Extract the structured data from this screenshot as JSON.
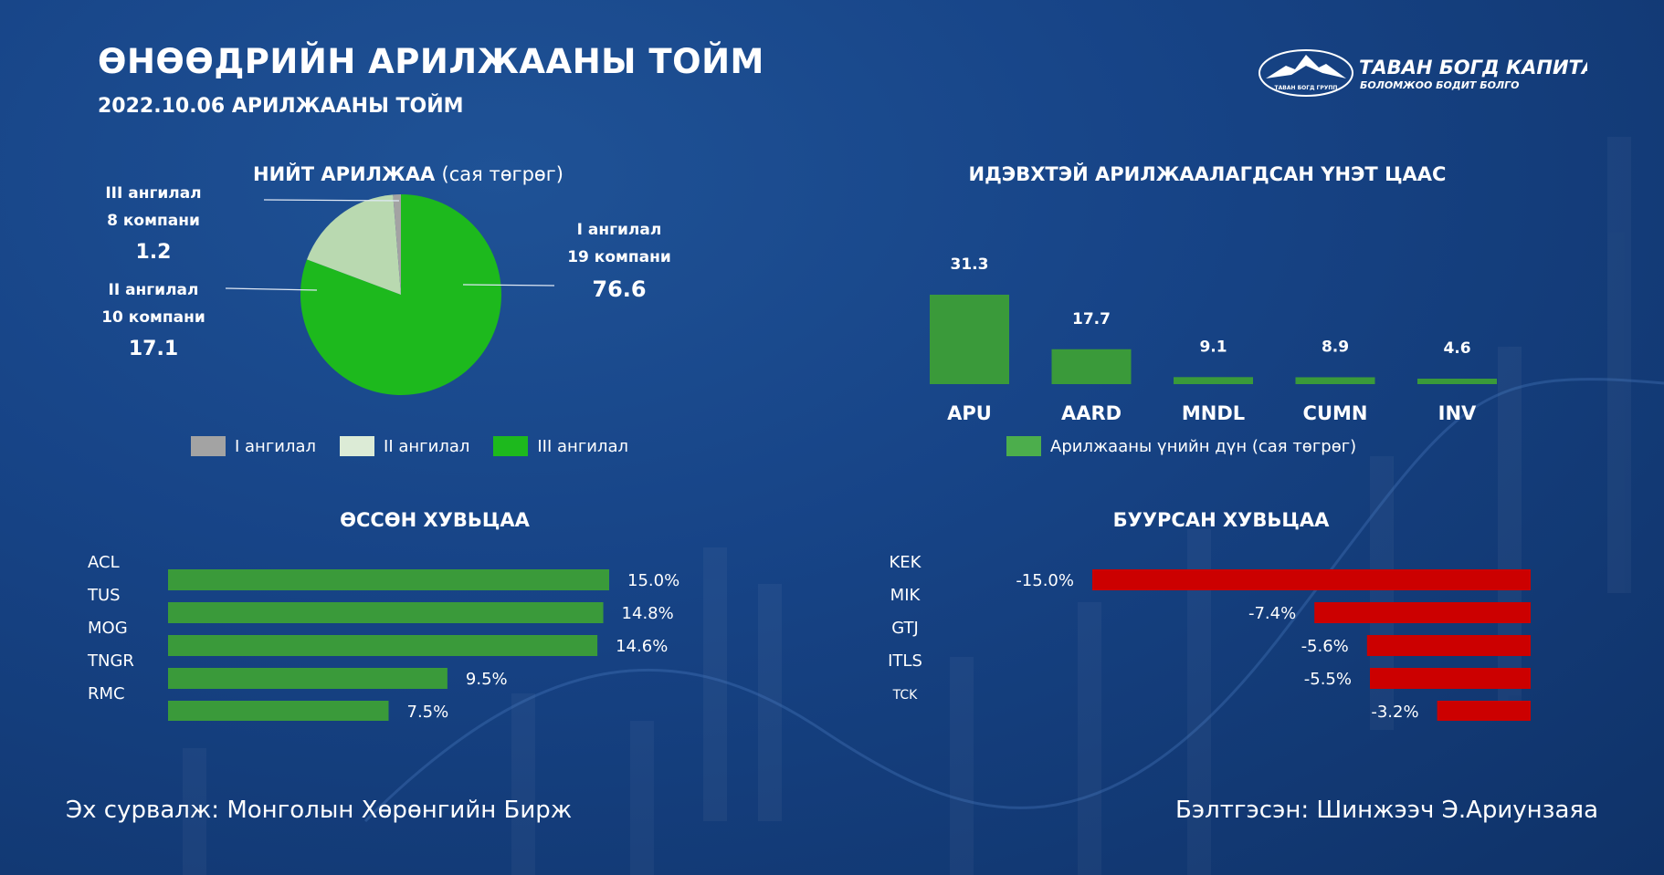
{
  "header": {
    "title": "ӨНӨӨДРИЙН АРИЛЖААНЫ ТОЙМ",
    "subtitle": "2022.10.06 АРИЛЖААНЫ ТОЙМ"
  },
  "logo": {
    "name": "ТАВАН БОГД КАПИТАЛ",
    "slogan": "БОЛОМЖОО БОДИТ БОЛГО",
    "badge": "ТАВАН БОГД ГРУПП"
  },
  "footer": {
    "source": "Эх сурвалж: Монголын Хөрөнгийн Бирж",
    "author": "Бэлтгэсэн: Шинжээч Э.Ариунзаяа"
  },
  "chart_data": [
    {
      "type": "pie",
      "title": "НИЙТ АРИЛЖАА",
      "title_unit": "(сая төгрөг)",
      "slices": [
        {
          "name": "I ангилал",
          "companies": "19 компани",
          "value": 76.6,
          "color": "#1db91d"
        },
        {
          "name": "II ангилал",
          "companies": "10 компани",
          "value": 17.1,
          "color": "#b9d9b0"
        },
        {
          "name": "III ангилал",
          "companies": "8 компани",
          "value": 1.2,
          "color": "#a3a3a3"
        }
      ],
      "legend": [
        {
          "label": "I ангилал",
          "color": "#a3a3a3"
        },
        {
          "label": "II ангилал",
          "color": "#dcebd6"
        },
        {
          "label": "III ангилал",
          "color": "#1db91d"
        }
      ],
      "legend_position": "bottom"
    },
    {
      "type": "bar",
      "title": "ИДЭВХТЭЙ АРИЛЖААЛАГДСАН ҮНЭТ ЦААС",
      "categories": [
        "APU",
        "AARD",
        "MNDL",
        "CUMN",
        "INV"
      ],
      "values": [
        31.3,
        17.7,
        9.1,
        8.9,
        4.6
      ],
      "series_name": "Арилжааны үнийн дүн (сая төгрөг)",
      "color": "#3a9a3a",
      "legend_position": "bottom"
    },
    {
      "type": "bar",
      "orientation": "horizontal",
      "title": "ӨССӨН ХУВЬЦАА",
      "categories": [
        "ACL",
        "TUS",
        "MOG",
        "TNGR",
        "RMC"
      ],
      "values": [
        15.0,
        14.8,
        14.6,
        9.5,
        7.5
      ],
      "labels": [
        "15.0%",
        "14.8%",
        "14.6%",
        "9.5%",
        "7.5%"
      ],
      "color": "#3a9a3a"
    },
    {
      "type": "bar",
      "orientation": "horizontal",
      "title": "БУУРСАН ХУВЬЦАА",
      "categories": [
        "KEK",
        "MIK",
        "GTJ",
        "ITLS",
        "TCK"
      ],
      "values": [
        -15.0,
        -7.4,
        -5.6,
        -5.5,
        -3.2
      ],
      "labels": [
        "-15.0%",
        "-7.4%",
        "-5.6%",
        "-5.5%",
        "-3.2%"
      ],
      "color": "#cc0000"
    }
  ]
}
